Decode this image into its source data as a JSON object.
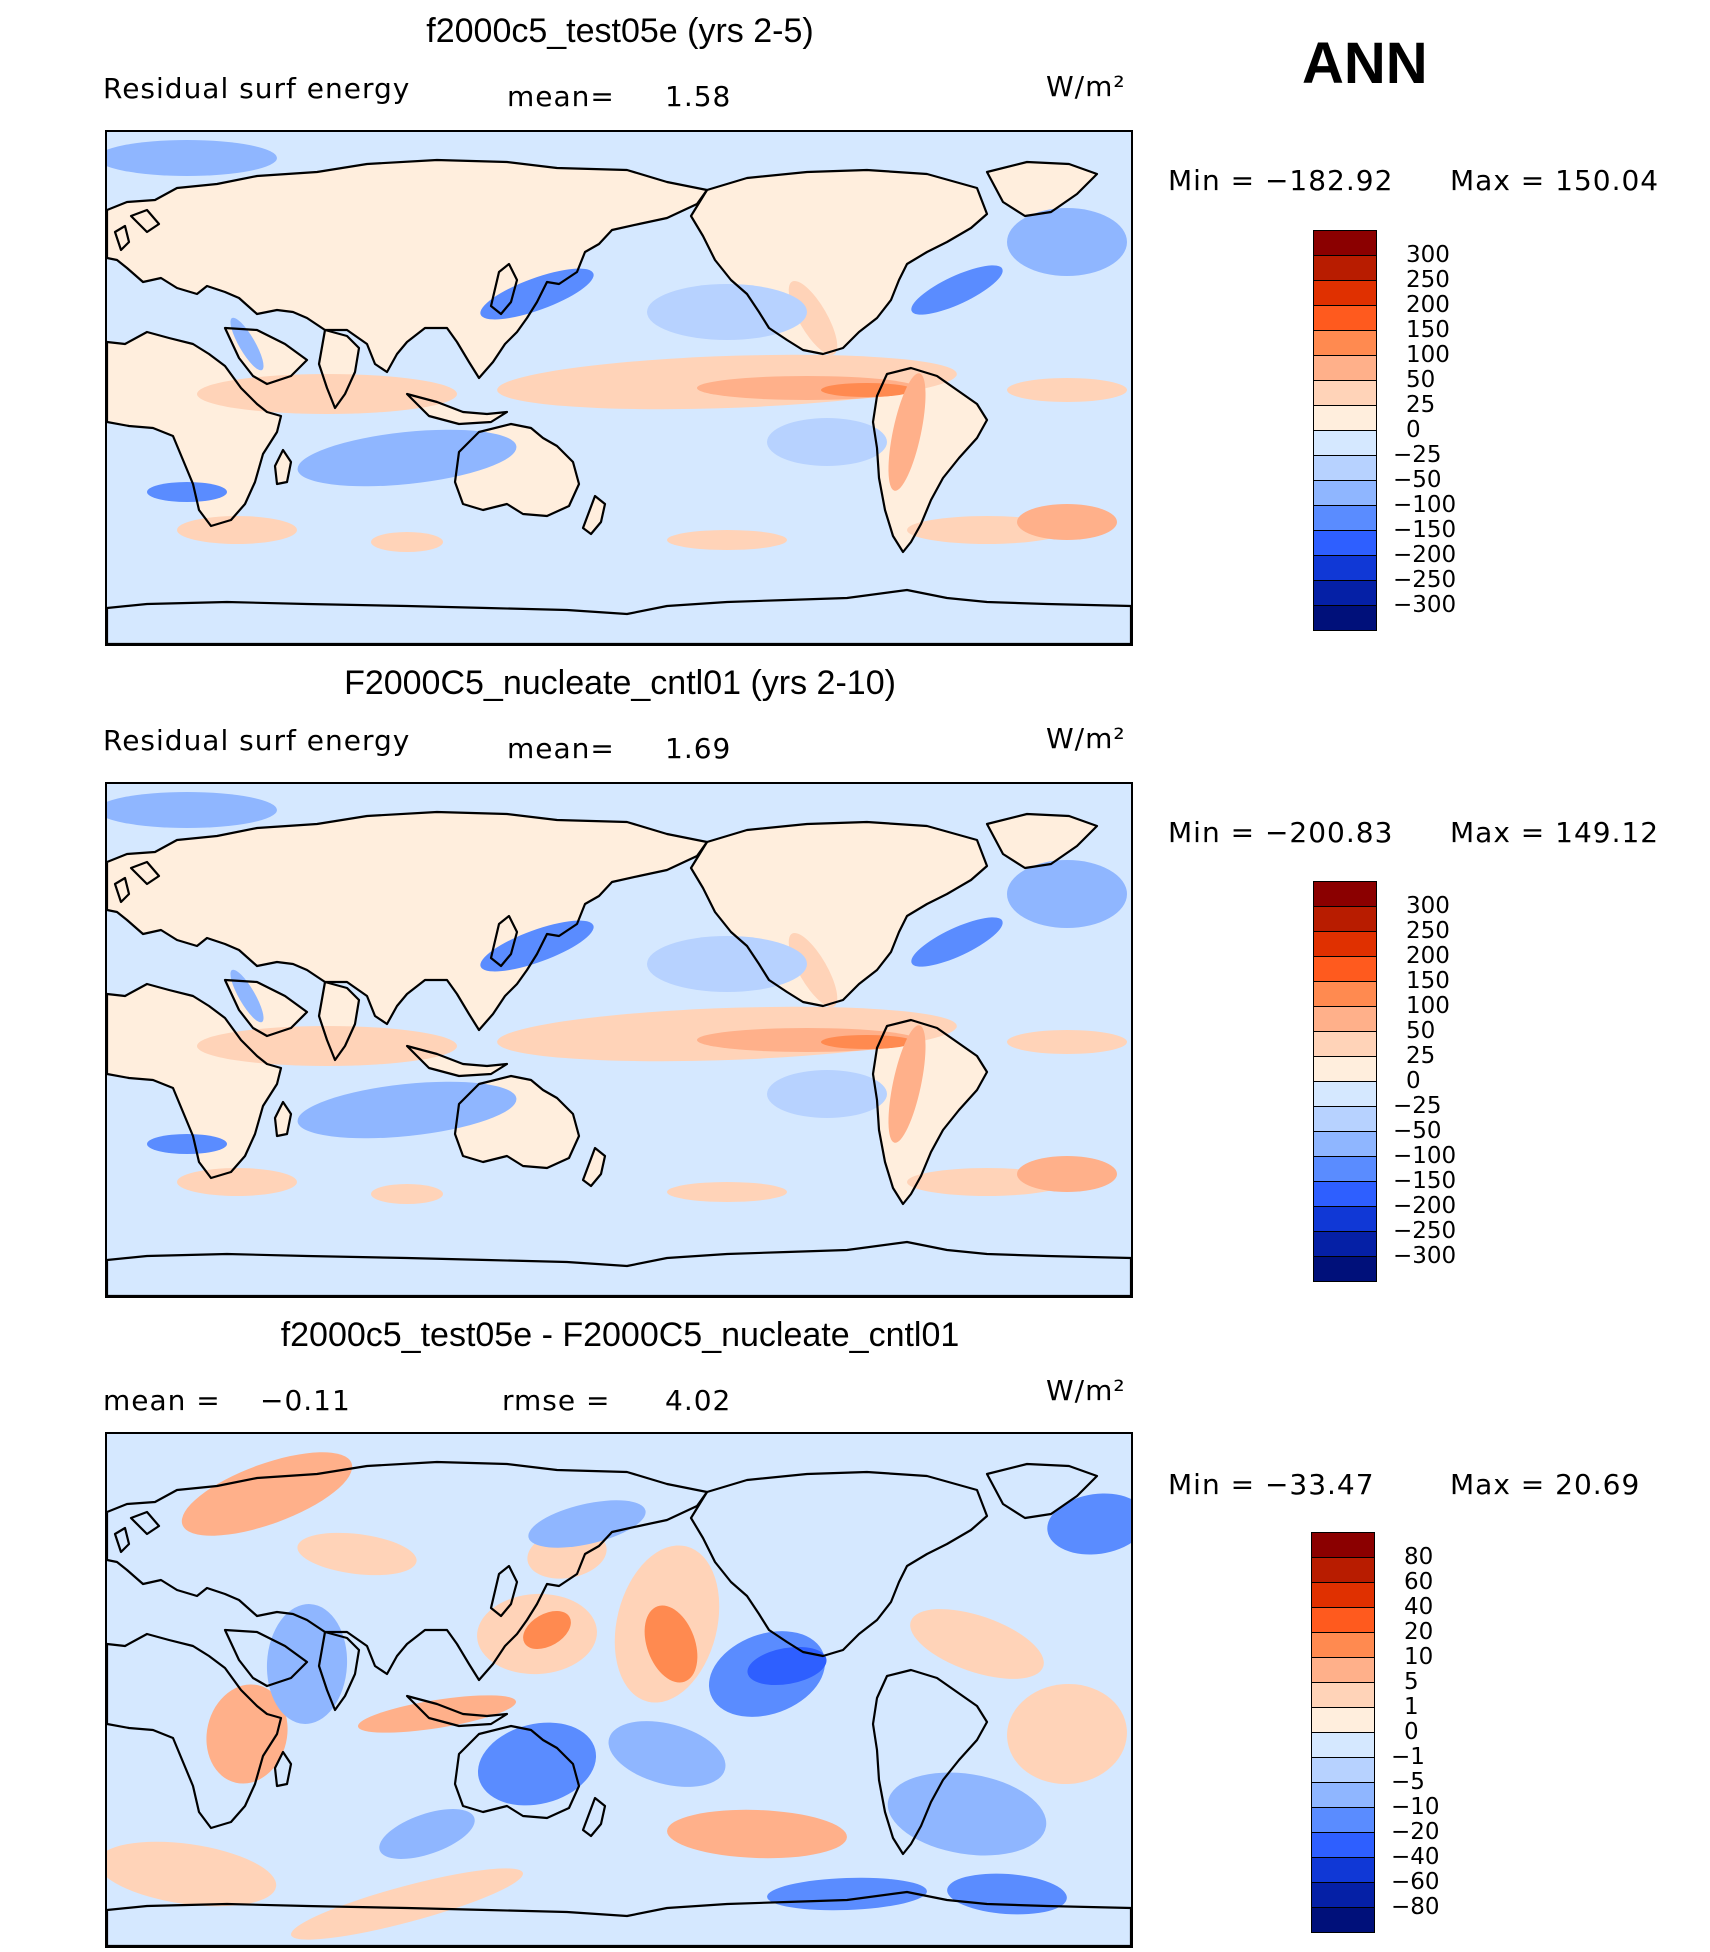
{
  "season": "ANN",
  "colors": {
    "abs_scale": [
      "#8b0000",
      "#b81c00",
      "#e03000",
      "#ff5a1e",
      "#ff8a50",
      "#ffb08a",
      "#ffd3b8",
      "#ffeedd",
      "#d5e8ff",
      "#b7d2ff",
      "#8fb6ff",
      "#5a8cff",
      "#2e5fff",
      "#1038d6",
      "#0520a6",
      "#00107a"
    ],
    "map_fills": {
      "neg_light": "#d5e8ff",
      "pos_light": "#ffeedd",
      "pos_mid": "#ffd3b8",
      "pos_strong": "#ffb08a",
      "pos_stronger": "#ff8a50",
      "neg_mid": "#b7d2ff",
      "neg_strong": "#8fb6ff",
      "neg_stronger": "#5a8cff",
      "neg_deep": "#2e5fff",
      "coast": "#000000"
    }
  },
  "chart_data": [
    {
      "type": "heatmap",
      "title": "f2000c5_test05e (yrs 2-5)",
      "left_label": "Residual surf energy",
      "mean_label": "mean=",
      "mean_value": "1.58",
      "units": "W/m²",
      "min_label": "Min = −182.92",
      "max_label": "Max = 150.04",
      "min": -182.92,
      "max": 150.04,
      "levels": [
        "300",
        "250",
        "200",
        "150",
        "100",
        "50",
        "25",
        "0",
        "−25",
        "−50",
        "−100",
        "−150",
        "−200",
        "−250",
        "−300"
      ]
    },
    {
      "type": "heatmap",
      "title": "F2000C5_nucleate_cntl01 (yrs 2-10)",
      "left_label": "Residual surf energy",
      "mean_label": "mean=",
      "mean_value": "1.69",
      "units": "W/m²",
      "min_label": "Min = −200.83",
      "max_label": "Max = 149.12",
      "min": -200.83,
      "max": 149.12,
      "levels": [
        "300",
        "250",
        "200",
        "150",
        "100",
        "50",
        "25",
        "0",
        "−25",
        "−50",
        "−100",
        "−150",
        "−200",
        "−250",
        "−300"
      ]
    },
    {
      "type": "heatmap",
      "title": "f2000c5_test05e - F2000C5_nucleate_cntl01",
      "left_label": "mean =",
      "mean_value": "−0.11",
      "rmse_label": "rmse =",
      "rmse_value": "4.02",
      "units": "W/m²",
      "min_label": "Min = −33.47",
      "max_label": "Max = 20.69",
      "min": -33.47,
      "max": 20.69,
      "levels": [
        "80",
        "60",
        "40",
        "20",
        "10",
        "5",
        "1",
        "0",
        "−1",
        "−5",
        "−10",
        "−20",
        "−40",
        "−60",
        "−80"
      ]
    }
  ]
}
